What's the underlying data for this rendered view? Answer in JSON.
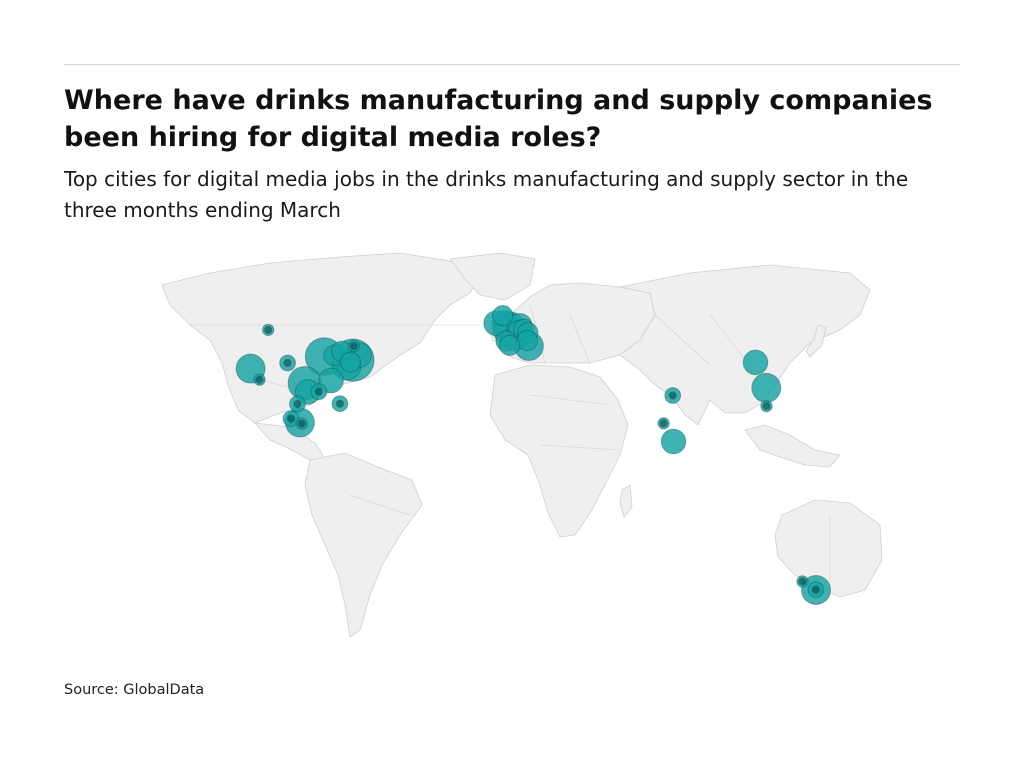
{
  "header": {
    "title": "Where have drinks manufacturing and supply companies been hiring for digital media roles?",
    "subtitle": "Top cities for digital media jobs in the drinks manufacturing and supply sector in the three months ending March"
  },
  "footer": {
    "source": "Source: GlobalData"
  },
  "colors": {
    "bubble": "#16a3a3",
    "bubble_dense": "#0b3c3c",
    "land": "#efefef",
    "border": "#cfcfcf",
    "rule": "#d6d6d6"
  },
  "chart_data": {
    "type": "map",
    "projection": "equirectangular world map",
    "encoding": "bubble size = number of digital media job postings (unlabelled); darker shading where bubbles overlap",
    "regions_with_bubbles": [
      "western United States",
      "north-eastern United States",
      "Mexico",
      "western Europe",
      "India",
      "China",
      "south-eastern Australia"
    ],
    "cities": [
      {
        "lon": -122.4,
        "lat": 37.8,
        "size": 5
      },
      {
        "lon": -118.2,
        "lat": 34.0,
        "size": 1
      },
      {
        "lon": -104.9,
        "lat": 39.7,
        "size": 2
      },
      {
        "lon": -96.8,
        "lat": 32.8,
        "size": 6
      },
      {
        "lon": -95.4,
        "lat": 29.8,
        "size": 4
      },
      {
        "lon": -90.1,
        "lat": 29.9,
        "size": 2
      },
      {
        "lon": -84.4,
        "lat": 33.7,
        "size": 4
      },
      {
        "lon": -87.6,
        "lat": 41.9,
        "size": 7
      },
      {
        "lon": -83.0,
        "lat": 42.3,
        "size": 3
      },
      {
        "lon": -80.2,
        "lat": 25.8,
        "size": 2
      },
      {
        "lon": -79.4,
        "lat": 43.7,
        "size": 3
      },
      {
        "lon": -77.0,
        "lat": 38.9,
        "size": 5
      },
      {
        "lon": -75.2,
        "lat": 40.0,
        "size": 3
      },
      {
        "lon": -74.0,
        "lat": 40.7,
        "size": 8
      },
      {
        "lon": -71.1,
        "lat": 42.4,
        "size": 4
      },
      {
        "lon": -73.6,
        "lat": 45.5,
        "size": 1
      },
      {
        "lon": -114.1,
        "lat": 51.0,
        "size": 1
      },
      {
        "lon": -100.3,
        "lat": 25.7,
        "size": 2
      },
      {
        "lon": -99.1,
        "lat": 19.4,
        "size": 5
      },
      {
        "lon": -103.3,
        "lat": 20.7,
        "size": 2
      },
      {
        "lon": -98.2,
        "lat": 19.0,
        "size": 1
      },
      {
        "lon": -0.1,
        "lat": 51.5,
        "size": 6
      },
      {
        "lon": -2.2,
        "lat": 53.5,
        "size": 4
      },
      {
        "lon": -6.3,
        "lat": 53.3,
        "size": 4
      },
      {
        "lon": -3.2,
        "lat": 55.9,
        "size": 3
      },
      {
        "lon": 2.4,
        "lat": 48.9,
        "size": 5
      },
      {
        "lon": 4.9,
        "lat": 52.4,
        "size": 4
      },
      {
        "lon": 4.4,
        "lat": 50.8,
        "size": 3
      },
      {
        "lon": 6.8,
        "lat": 51.2,
        "size": 3
      },
      {
        "lon": 8.7,
        "lat": 50.1,
        "size": 3
      },
      {
        "lon": 8.5,
        "lat": 47.4,
        "size": 3
      },
      {
        "lon": 9.2,
        "lat": 45.5,
        "size": 5
      },
      {
        "lon": -1.6,
        "lat": 47.2,
        "size": 3
      },
      {
        "lon": 0.1,
        "lat": 45.7,
        "size": 3
      },
      {
        "lon": 72.9,
        "lat": 19.1,
        "size": 1
      },
      {
        "lon": 77.6,
        "lat": 12.9,
        "size": 4
      },
      {
        "lon": 77.2,
        "lat": 28.6,
        "size": 2
      },
      {
        "lon": 116.4,
        "lat": 39.9,
        "size": 4
      },
      {
        "lon": 121.5,
        "lat": 31.2,
        "size": 5
      },
      {
        "lon": 121.6,
        "lat": 25.0,
        "size": 1
      },
      {
        "lon": 145.0,
        "lat": -37.8,
        "size": 5
      },
      {
        "lon": 144.9,
        "lat": -37.7,
        "size": 2
      },
      {
        "lon": 138.6,
        "lat": -34.9,
        "size": 1
      }
    ]
  }
}
